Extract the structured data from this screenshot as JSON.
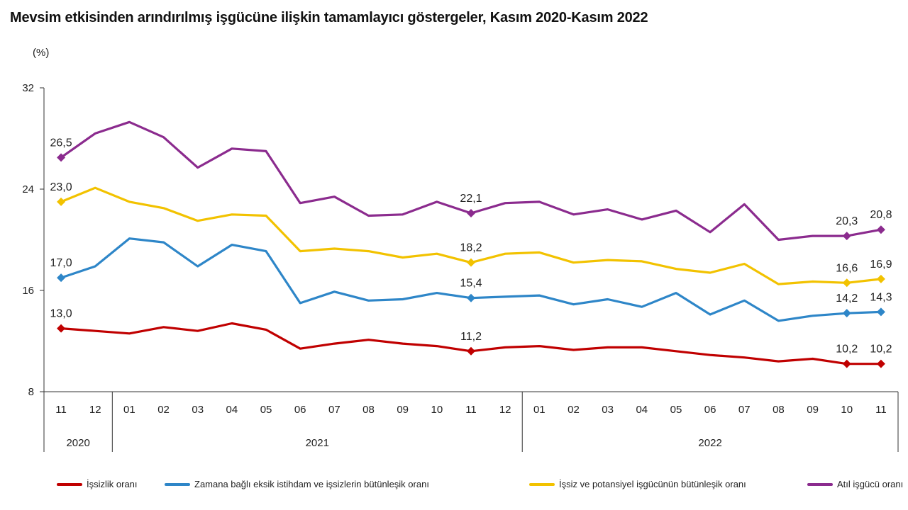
{
  "title": "Mevsim etkisinden arındırılmış işgücüne ilişkin tamamlayıcı göstergeler, Kasım 2020-Kasım 2022",
  "unit_label": "(%)",
  "chart_data": {
    "type": "line",
    "title": "Mevsim etkisinden arındırılmış işgücüne ilişkin tamamlayıcı göstergeler, Kasım 2020-Kasım 2022",
    "ylabel": "(%)",
    "ylim": [
      8,
      32
    ],
    "yticks": [
      "8",
      "16",
      "24",
      "32"
    ],
    "categories": [
      "11",
      "12",
      "01",
      "02",
      "03",
      "04",
      "05",
      "06",
      "07",
      "08",
      "09",
      "10",
      "11",
      "12",
      "01",
      "02",
      "03",
      "04",
      "05",
      "06",
      "07",
      "08",
      "09",
      "10",
      "11"
    ],
    "year_groups": [
      {
        "label": "2020",
        "start": 0,
        "end": 1
      },
      {
        "label": "2021",
        "start": 2,
        "end": 13
      },
      {
        "label": "2022",
        "start": 14,
        "end": 24
      }
    ],
    "legend_position": "bottom",
    "grid": false,
    "series": [
      {
        "name": "İşsizlik oranı",
        "color": "#c00000",
        "values": [
          13.0,
          12.8,
          12.6,
          13.1,
          12.8,
          13.4,
          12.9,
          11.4,
          11.8,
          12.1,
          11.8,
          11.6,
          11.2,
          11.5,
          11.6,
          11.3,
          11.5,
          11.5,
          11.2,
          10.9,
          10.7,
          10.4,
          10.6,
          10.2,
          10.2
        ],
        "labeled": [
          {
            "index": 0,
            "text": "13,0"
          },
          {
            "index": 12,
            "text": "11,2"
          },
          {
            "index": 23,
            "text": "10,2"
          },
          {
            "index": 24,
            "text": "10,2"
          }
        ]
      },
      {
        "name": "Zamana bağlı eksik istihdam ve işsizlerin bütünleşik oranı",
        "color": "#2e86c8",
        "values": [
          17.0,
          17.9,
          20.1,
          19.8,
          17.9,
          19.6,
          19.1,
          15.0,
          15.9,
          15.2,
          15.3,
          15.8,
          15.4,
          15.5,
          15.6,
          14.9,
          15.3,
          14.7,
          15.8,
          14.1,
          15.2,
          13.6,
          14.0,
          14.2,
          14.3
        ],
        "labeled": [
          {
            "index": 0,
            "text": "17,0"
          },
          {
            "index": 12,
            "text": "15,4"
          },
          {
            "index": 23,
            "text": "14,2"
          },
          {
            "index": 24,
            "text": "14,3"
          }
        ]
      },
      {
        "name": "İşsiz ve potansiyel işgücünün bütünleşik oranı",
        "color": "#f2c200",
        "values": [
          23.0,
          24.1,
          23.0,
          22.5,
          21.5,
          22.0,
          21.9,
          19.1,
          19.3,
          19.1,
          18.6,
          18.9,
          18.2,
          18.9,
          19.0,
          18.2,
          18.4,
          18.3,
          17.7,
          17.4,
          18.1,
          16.5,
          16.7,
          16.6,
          16.9
        ],
        "labeled": [
          {
            "index": 0,
            "text": "23,0"
          },
          {
            "index": 12,
            "text": "18,2"
          },
          {
            "index": 23,
            "text": "16,6"
          },
          {
            "index": 24,
            "text": "16,9"
          }
        ]
      },
      {
        "name": "Atıl işgücü oranı",
        "color": "#8b2b8e",
        "values": [
          26.5,
          28.4,
          29.3,
          28.1,
          25.7,
          27.2,
          27.0,
          22.9,
          23.4,
          21.9,
          22.0,
          23.0,
          22.1,
          22.9,
          23.0,
          22.0,
          22.4,
          21.6,
          22.3,
          20.6,
          22.8,
          20.0,
          20.3,
          20.3,
          20.8
        ],
        "labeled": [
          {
            "index": 0,
            "text": "26,5"
          },
          {
            "index": 12,
            "text": "22,1"
          },
          {
            "index": 23,
            "text": "20,3"
          },
          {
            "index": 24,
            "text": "20,8"
          }
        ]
      }
    ]
  }
}
